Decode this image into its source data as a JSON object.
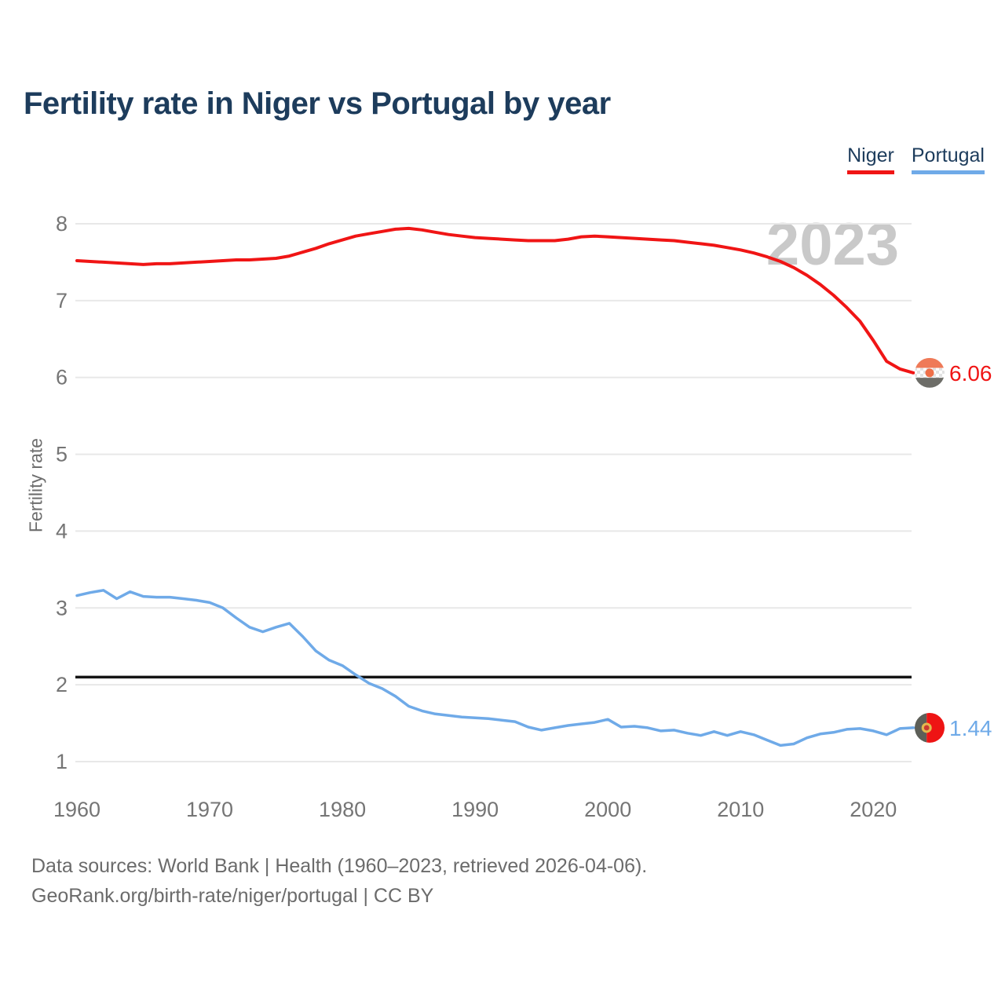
{
  "header": {
    "title": "Fertility rate in Niger vs Portugal by year"
  },
  "legend": {
    "items": [
      {
        "label": "Niger",
        "color": "#f01515"
      },
      {
        "label": "Portugal",
        "color": "#6faae8"
      }
    ]
  },
  "watermark": "2023",
  "footer": {
    "line1": "Data sources: World Bank | Health (1960–2023, retrieved 2026-04-06).",
    "line2": "GeoRank.org/birth-rate/niger/portugal | CC BY"
  },
  "colors": {
    "niger_line": "#f01515",
    "portugal_line": "#6faae8",
    "title_text": "#1d3c5c",
    "axis_text": "#757575",
    "axis_title_text": "#6e6e6e",
    "footer_text": "#6b6b6b",
    "watermark_text": "#c9c9c9",
    "gridline": "#e8e8e8",
    "reference_line": "#141414"
  },
  "chart_data": {
    "type": "line",
    "title": "Fertility rate in Niger vs Portugal by year",
    "xlabel": "",
    "ylabel": "Fertility rate",
    "xlim": [
      1960,
      2023
    ],
    "ylim_drawn": [
      1,
      8
    ],
    "x_ticks": [
      1960,
      1970,
      1980,
      1990,
      2000,
      2010,
      2020
    ],
    "y_ticks": [
      1,
      2,
      3,
      4,
      5,
      6,
      7,
      8
    ],
    "grid": "horizontal",
    "legend_position": "top-right",
    "watermark_year": "2023",
    "reference_line": {
      "value": 2.1,
      "color": "#141414"
    },
    "series": [
      {
        "name": "Niger",
        "color": "#f01515",
        "end_label": "6.06",
        "values": [
          7.52,
          7.51,
          7.5,
          7.49,
          7.48,
          7.47,
          7.48,
          7.48,
          7.49,
          7.5,
          7.51,
          7.52,
          7.53,
          7.53,
          7.54,
          7.55,
          7.58,
          7.63,
          7.68,
          7.74,
          7.79,
          7.84,
          7.87,
          7.9,
          7.93,
          7.94,
          7.92,
          7.89,
          7.86,
          7.84,
          7.82,
          7.81,
          7.8,
          7.79,
          7.78,
          7.78,
          7.78,
          7.8,
          7.83,
          7.84,
          7.83,
          7.82,
          7.81,
          7.8,
          7.79,
          7.78,
          7.76,
          7.74,
          7.72,
          7.69,
          7.66,
          7.62,
          7.57,
          7.51,
          7.43,
          7.33,
          7.21,
          7.07,
          6.91,
          6.73,
          6.48,
          6.21,
          6.11,
          6.06
        ]
      },
      {
        "name": "Portugal",
        "color": "#6faae8",
        "end_label": "1.44",
        "values": [
          3.16,
          3.2,
          3.23,
          3.12,
          3.21,
          3.15,
          3.14,
          3.14,
          3.12,
          3.1,
          3.07,
          3.0,
          2.87,
          2.75,
          2.69,
          2.75,
          2.8,
          2.63,
          2.44,
          2.32,
          2.25,
          2.13,
          2.02,
          1.95,
          1.85,
          1.72,
          1.66,
          1.62,
          1.6,
          1.58,
          1.57,
          1.56,
          1.54,
          1.52,
          1.45,
          1.41,
          1.44,
          1.47,
          1.49,
          1.51,
          1.55,
          1.45,
          1.46,
          1.44,
          1.4,
          1.41,
          1.37,
          1.34,
          1.39,
          1.34,
          1.39,
          1.35,
          1.28,
          1.21,
          1.23,
          1.31,
          1.36,
          1.38,
          1.42,
          1.43,
          1.4,
          1.35,
          1.43,
          1.44
        ]
      }
    ]
  }
}
